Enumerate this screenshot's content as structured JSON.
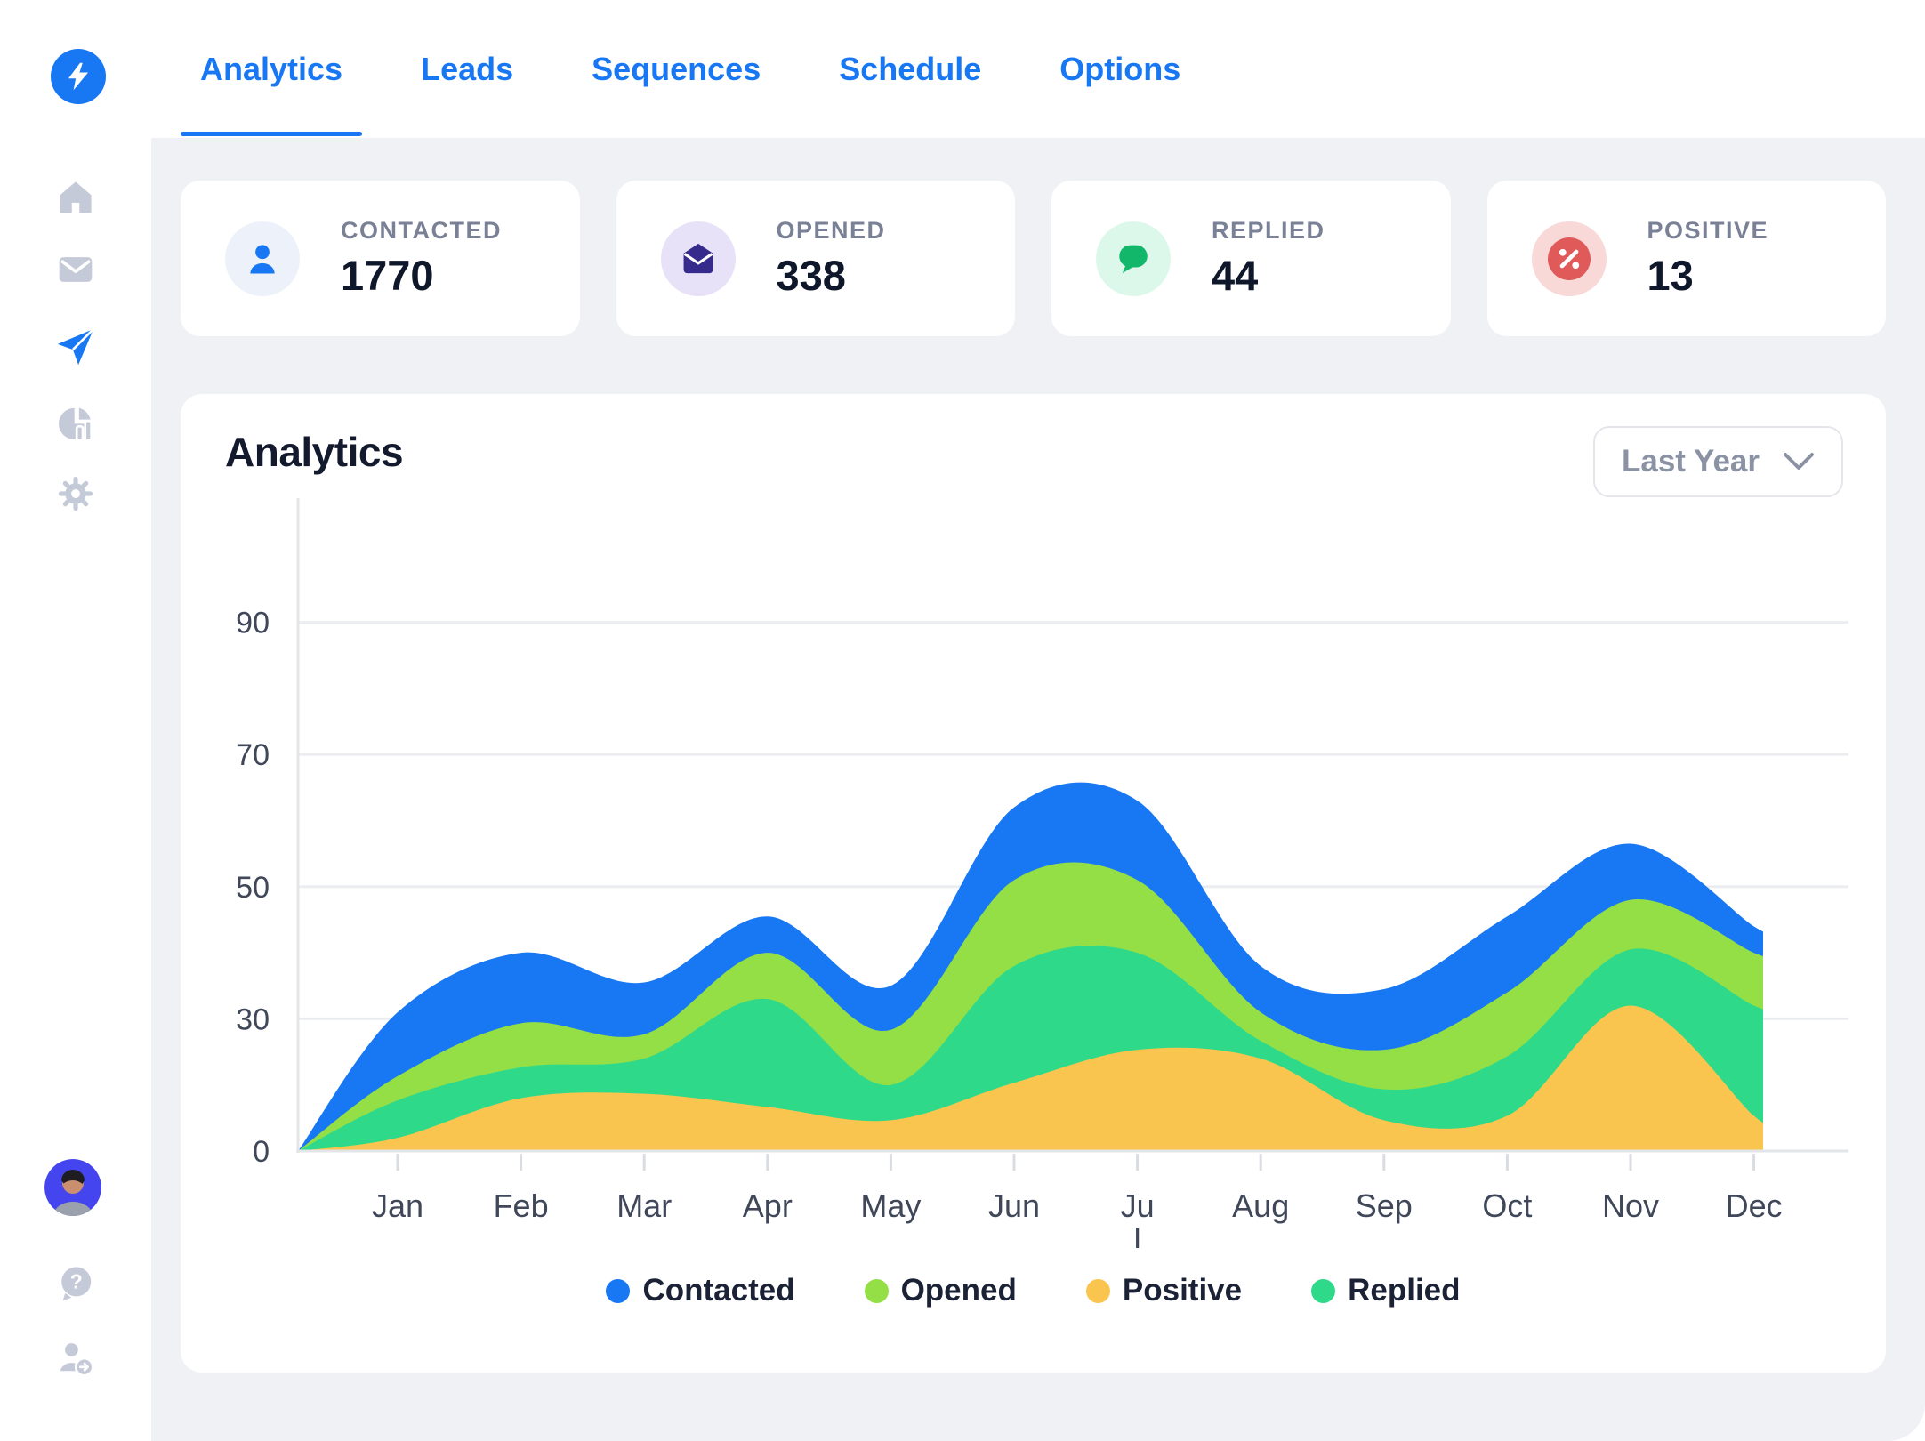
{
  "nav": {
    "tabs": [
      {
        "label": "Analytics",
        "active": true
      },
      {
        "label": "Leads",
        "active": false
      },
      {
        "label": "Sequences",
        "active": false
      },
      {
        "label": "Schedule",
        "active": false
      },
      {
        "label": "Options",
        "active": false
      }
    ]
  },
  "sidebar": {
    "items": [
      "home-icon",
      "mail-icon",
      "send-icon",
      "pie-chart-icon",
      "gear-icon"
    ],
    "active_item": "send-icon",
    "footer": [
      "avatar",
      "help-icon",
      "switch-account-icon"
    ],
    "icon_gray": "#C5CAD8",
    "accent": "#1877F2"
  },
  "stats": [
    {
      "label": "CONTACTED",
      "value": "1770",
      "icon": "user-icon",
      "icon_color": "#1877F2",
      "icon_bg": "#EDF1F9"
    },
    {
      "label": "OPENED",
      "value": "338",
      "icon": "mail-open-icon",
      "icon_color": "#362B8D",
      "icon_bg": "#E7E2F8"
    },
    {
      "label": "REPLIED",
      "value": "44",
      "icon": "chat-bubble-icon",
      "icon_color": "#12B76A",
      "icon_bg": "#DCF8EA"
    },
    {
      "label": "POSITIVE",
      "value": "13",
      "icon": "percent-icon",
      "icon_color": "#E05A5A",
      "icon_bg": "#F9D8D8"
    }
  ],
  "panel": {
    "title": "Analytics",
    "range_selector": {
      "value": "Last Year",
      "icon": "chevron-down-icon"
    }
  },
  "chart_data": {
    "type": "area",
    "stacked": true,
    "title": "Analytics",
    "categories": [
      "Jan",
      "Feb",
      "Mar",
      "Apr",
      "May",
      "Jun",
      "Jul",
      "Aug",
      "Sep",
      "Oct",
      "Nov",
      "Dec"
    ],
    "x_labels_display": [
      "Jan",
      "Feb",
      "Mar",
      "Apr",
      "May",
      "Jun",
      "Ju\nl",
      "Aug",
      "Sep",
      "Oct",
      "Nov",
      "Dec"
    ],
    "y_ticks": [
      0,
      30,
      50,
      70,
      90
    ],
    "y_tick_spacing": "uniform-non-linear",
    "grid": "horizontal",
    "value_type": "cumulative_top_of_stacked_band",
    "series": [
      {
        "name": "Contacted",
        "color": "#1877F2",
        "cumulative_top": [
          31,
          40,
          35.5,
          45.5,
          35,
          62,
          63,
          38,
          34.5,
          45.5,
          56.5,
          44
        ]
      },
      {
        "name": "Opened",
        "color": "#94DF45",
        "cumulative_top": [
          17,
          29,
          26.5,
          40,
          27.5,
          51,
          51,
          31,
          23,
          34,
          48,
          40
        ]
      },
      {
        "name": "Replied",
        "color": "#2FD98A",
        "cumulative_top": [
          11.5,
          19,
          21,
          33,
          15,
          38,
          40,
          25,
          14,
          21.5,
          40.5,
          32
        ]
      },
      {
        "name": "Positive",
        "color": "#F9C54F",
        "cumulative_top": [
          3,
          12,
          13,
          10,
          7,
          15.5,
          23,
          21,
          7,
          8,
          32,
          8
        ]
      }
    ],
    "legend": [
      {
        "label": "Contacted",
        "color": "#1877F2"
      },
      {
        "label": "Opened",
        "color": "#94DF45"
      },
      {
        "label": "Positive",
        "color": "#F9C54F"
      },
      {
        "label": "Replied",
        "color": "#2FD98A"
      }
    ],
    "axis_label_color": "#3F4759",
    "gridline_color": "#ECEDF0",
    "axis_line_color": "#E3E5E9"
  }
}
